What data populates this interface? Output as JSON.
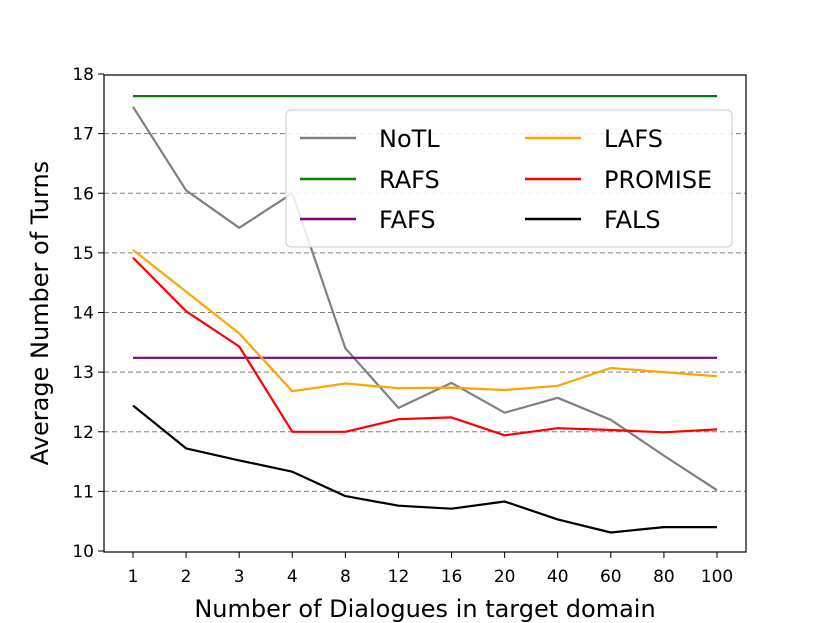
{
  "chart_data": {
    "type": "line",
    "title": "",
    "xlabel": "Number of Dialogues in target domain",
    "ylabel": "Average Number of Turns",
    "categories": [
      "1",
      "2",
      "3",
      "4",
      "8",
      "12",
      "16",
      "20",
      "40",
      "60",
      "80",
      "100"
    ],
    "ylim": [
      10,
      18
    ],
    "yticks": [
      "10",
      "11",
      "12",
      "13",
      "14",
      "15",
      "16",
      "17",
      "18"
    ],
    "grid": "horizontal dashed",
    "legend_position": "upper-right",
    "series": [
      {
        "name": "NoTL",
        "color": "#808080",
        "values": [
          17.45,
          16.05,
          15.42,
          16.0,
          13.4,
          12.4,
          12.82,
          12.32,
          12.57,
          12.2,
          11.6,
          11.02
        ]
      },
      {
        "name": "RAFS",
        "color": "#008000",
        "values": [
          17.63,
          17.63,
          17.63,
          17.63,
          17.63,
          17.63,
          17.63,
          17.63,
          17.63,
          17.63,
          17.63,
          17.63
        ]
      },
      {
        "name": "FAFS",
        "color": "#800080",
        "values": [
          13.24,
          13.24,
          13.24,
          13.24,
          13.24,
          13.24,
          13.24,
          13.24,
          13.24,
          13.24,
          13.24,
          13.24
        ]
      },
      {
        "name": "LAFS",
        "color": "#ffa500",
        "values": [
          15.05,
          14.35,
          13.65,
          12.68,
          12.81,
          12.73,
          12.74,
          12.7,
          12.77,
          13.07,
          13.0,
          12.93
        ]
      },
      {
        "name": "PROMISE",
        "color": "#ff0000",
        "values": [
          14.92,
          14.02,
          13.43,
          12.0,
          12.0,
          12.21,
          12.24,
          11.94,
          12.06,
          12.03,
          11.99,
          12.04
        ]
      },
      {
        "name": "FALS",
        "color": "#000000",
        "values": [
          12.44,
          11.72,
          11.52,
          11.33,
          10.92,
          10.76,
          10.71,
          10.83,
          10.53,
          10.31,
          10.4,
          10.4
        ]
      }
    ]
  }
}
